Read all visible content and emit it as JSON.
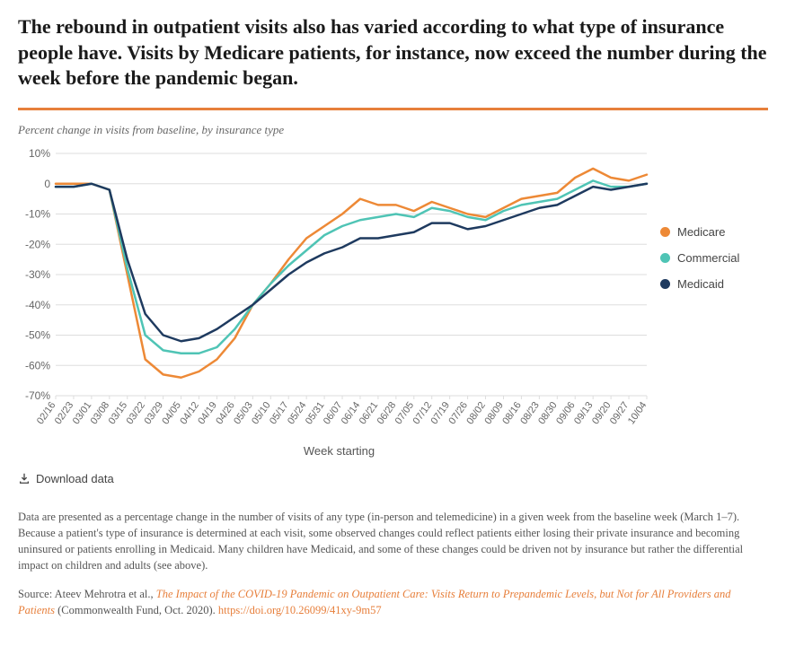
{
  "title": "The rebound in outpatient visits also has varied according to what type of insurance people have. Visits by Medicare patients, for instance, now exceed the number during the week before the pandemic began.",
  "subtitle": "Percent change in visits from baseline, by insurance type",
  "rule_color": "#e77f3b",
  "chart": {
    "type": "line",
    "background_color": "#ffffff",
    "grid_color": "#dddddd",
    "text_color": "#666666",
    "xaxis_title": "Week starting",
    "ylim": [
      -70,
      10
    ],
    "ytick_step": 10,
    "ytick_suffix": "%",
    "line_width": 2.5,
    "label_fontsize": 12,
    "xticklabel_fontsize": 11,
    "categories": [
      "02/16",
      "02/23",
      "03/01",
      "03/08",
      "03/15",
      "03/22",
      "03/29",
      "04/05",
      "04/12",
      "04/19",
      "04/26",
      "05/03",
      "05/10",
      "05/17",
      "05/24",
      "05/31",
      "06/07",
      "06/14",
      "06/21",
      "06/28",
      "07/05",
      "07/12",
      "07/19",
      "07/26",
      "08/02",
      "08/09",
      "08/16",
      "08/23",
      "08/30",
      "09/06",
      "09/13",
      "09/20",
      "09/27",
      "10/04"
    ],
    "series": [
      {
        "name": "Medicare",
        "color": "#ed8936",
        "values": [
          0,
          0,
          0,
          -2,
          -30,
          -58,
          -63,
          -64,
          -62,
          -58,
          -51,
          -40,
          -33,
          -25,
          -18,
          -14,
          -10,
          -5,
          -7,
          -7,
          -9,
          -6,
          -8,
          -10,
          -11,
          -8,
          -5,
          -4,
          -3,
          2,
          5,
          2,
          1,
          3
        ]
      },
      {
        "name": "Commercial",
        "color": "#4fc4b5",
        "values": [
          -1,
          -1,
          0,
          -2,
          -28,
          -50,
          -55,
          -56,
          -56,
          -54,
          -48,
          -40,
          -33,
          -27,
          -22,
          -17,
          -14,
          -12,
          -11,
          -10,
          -11,
          -8,
          -9,
          -11,
          -12,
          -9,
          -7,
          -6,
          -5,
          -2,
          1,
          -1,
          -1,
          0
        ]
      },
      {
        "name": "Medicaid",
        "color": "#1e3a5f",
        "values": [
          -1,
          -1,
          0,
          -2,
          -25,
          -43,
          -50,
          -52,
          -51,
          -48,
          -44,
          -40,
          -35,
          -30,
          -26,
          -23,
          -21,
          -18,
          -18,
          -17,
          -16,
          -13,
          -13,
          -15,
          -14,
          -12,
          -10,
          -8,
          -7,
          -4,
          -1,
          -2,
          -1,
          0
        ]
      }
    ],
    "legend_position": "right"
  },
  "download_label": "Download data",
  "footnote": "Data are presented as a percentage change in the number of visits of any type (in-person and telemedicine) in a given week from the baseline week (March 1–7). Because a patient's type of insurance is determined at each visit, some observed changes could reflect patients either losing their private insurance and becoming uninsured or patients enrolling in Medicaid. Many children have Medicaid, and some of these changes could be driven not by insurance but rather the differential impact on children and adults (see above).",
  "source_prefix": "Source: Ateev Mehrotra et al., ",
  "source_title": "The Impact of the COVID-19 Pandemic on Outpatient Care: Visits Return to Prepandemic Levels, but Not for All Providers and Patients",
  "source_suffix": " (Commonwealth Fund, Oct. 2020). ",
  "source_url": "https://doi.org/10.26099/41xy-9m57"
}
